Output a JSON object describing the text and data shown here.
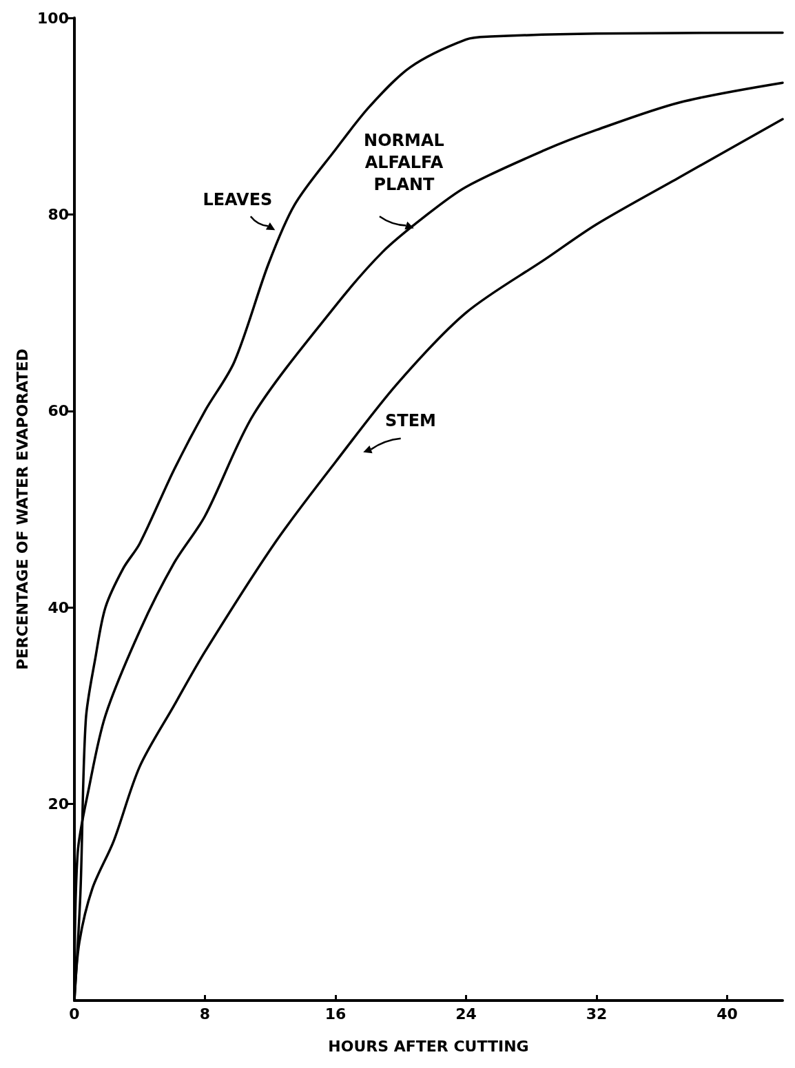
{
  "chart_data": {
    "type": "line",
    "xlabel": "HOURS AFTER CUTTING",
    "ylabel": "PERCENTAGE OF WATER EVAPORATED",
    "xlim": [
      0,
      43.4
    ],
    "xticks": [
      0,
      8,
      16,
      24,
      32,
      40
    ],
    "ylim": [
      0,
      100
    ],
    "yticks": [
      20,
      40,
      60,
      80,
      100
    ],
    "grid": false,
    "legend": false,
    "marker": "none",
    "line_style": "solid",
    "series": [
      {
        "name": "LEAVES",
        "color": "#000000",
        "x": [
          0,
          0.37,
          0.7,
          1.3,
          1.9,
          3,
          4,
          6.1,
          8,
          9.8,
          11.9,
          13.5,
          16,
          18.1,
          20.6,
          24,
          25.5,
          32,
          43.4
        ],
        "values": [
          0,
          11,
          28.6,
          35,
          40,
          44,
          46.5,
          54,
          60,
          65,
          75,
          81,
          86.6,
          91,
          95,
          97.8,
          98.1,
          98.4,
          98.5
        ]
      },
      {
        "name": "NORMAL ALFALFA PLANT",
        "color": "#000000",
        "x": [
          0,
          0.2,
          0.9,
          1.9,
          4,
          6.1,
          8,
          11,
          16,
          18.9,
          21.4,
          24,
          28.9,
          32,
          37.1,
          43.4
        ],
        "values": [
          0,
          15,
          21.7,
          29,
          37.6,
          44.5,
          49.3,
          59.7,
          70.7,
          76.2,
          79.7,
          82.8,
          86.6,
          88.6,
          91.4,
          93.4
        ]
      },
      {
        "name": "STEM",
        "color": "#000000",
        "x": [
          0,
          0.3,
          1.1,
          2.4,
          4,
          6.1,
          8,
          12.3,
          16,
          19.8,
          24,
          28.9,
          32,
          37.1,
          43.4
        ],
        "values": [
          0,
          5.9,
          11.4,
          16.2,
          23.8,
          30,
          35.5,
          46.6,
          54.8,
          62.8,
          70,
          75.5,
          79,
          83.8,
          89.7
        ]
      }
    ]
  }
}
